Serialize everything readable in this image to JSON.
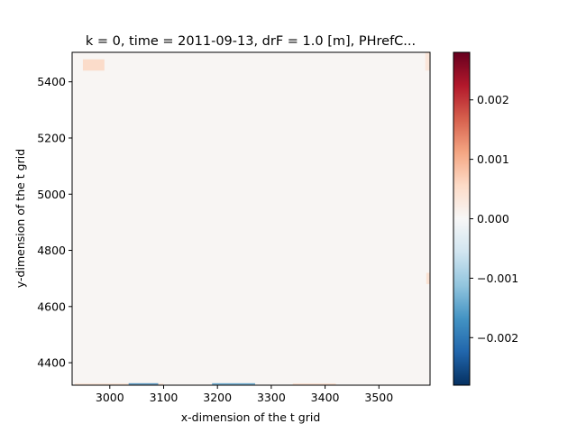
{
  "chart_data": {
    "type": "heatmap",
    "title": "k = 0, time = 2011-09-13, drF = 1.0 [m], PHrefC...",
    "xlabel": "x-dimension of the t grid",
    "ylabel": "y-dimension of the t grid",
    "xlim": [
      2930,
      3595
    ],
    "ylim": [
      4320,
      5505
    ],
    "x_ticks": [
      3000,
      3100,
      3200,
      3300,
      3400,
      3500
    ],
    "x_tick_labels": [
      "3000",
      "3100",
      "3200",
      "3300",
      "3400",
      "3500"
    ],
    "y_ticks": [
      4400,
      4600,
      4800,
      5000,
      5200,
      5400
    ],
    "y_tick_labels": [
      "4400",
      "4600",
      "4800",
      "5000",
      "5200",
      "5400"
    ],
    "colorbar": {
      "colormap": "RdBu_r",
      "vmin": -0.0028,
      "vmax": 0.0028,
      "ticks": [
        -0.002,
        -0.001,
        0.0,
        0.001,
        0.002
      ],
      "tick_labels": [
        "−0.002",
        "−0.001",
        "0.000",
        "0.001",
        "0.002"
      ]
    },
    "field_background_value": 5e-05,
    "features": [
      {
        "x0": 2950,
        "x1": 2990,
        "y0": 5440,
        "y1": 5480,
        "value": 0.0006
      },
      {
        "x0": 2935,
        "x1": 3100,
        "y0": 4322,
        "y1": 4326,
        "value": 0.0005
      },
      {
        "x0": 3035,
        "x1": 3090,
        "y0": 4322,
        "y1": 4327,
        "value": -0.0018
      },
      {
        "x0": 3190,
        "x1": 3270,
        "y0": 4322,
        "y1": 4327,
        "value": -0.0016
      },
      {
        "x0": 3340,
        "x1": 3420,
        "y0": 4322,
        "y1": 4326,
        "value": 0.0006
      },
      {
        "x0": 3588,
        "x1": 3595,
        "y0": 4680,
        "y1": 4720,
        "value": 0.0005
      },
      {
        "x0": 3586,
        "x1": 3595,
        "y0": 5440,
        "y1": 5505,
        "value": 0.0004
      }
    ]
  }
}
